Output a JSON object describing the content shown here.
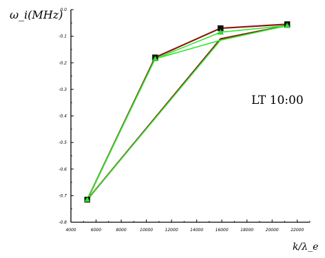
{
  "chart_data": {
    "type": "line",
    "ylabel": "ω_i(MHz)",
    "xlabel": "k/λ_e",
    "annotation": "LT 10:00",
    "xlim": [
      4000,
      23000
    ],
    "ylim": [
      -0.8,
      0.0
    ],
    "x_ticks": [
      4000,
      6000,
      8000,
      10000,
      12000,
      14000,
      16000,
      18000,
      20000,
      22000
    ],
    "x_tick_labels": [
      "4000",
      "6000",
      "8000",
      "10000",
      "12000",
      "14000",
      "16000",
      "18000",
      "20000",
      "22000"
    ],
    "y_ticks": [
      0.0,
      -0.1,
      -0.2,
      -0.3,
      -0.4,
      -0.5,
      -0.6,
      -0.7,
      -0.8
    ],
    "y_tick_labels": [
      "0.0",
      "-0.1",
      "-0.2",
      "-0.3",
      "-0.4",
      "-0.5",
      "-0.6",
      "-0.7",
      "-0.8"
    ],
    "series": [
      {
        "color": "#8b1a10",
        "marker": "square",
        "x": [
          5300,
          10700,
          15900,
          21200
        ],
        "y": [
          -0.715,
          -0.18,
          -0.07,
          -0.055
        ]
      },
      {
        "color": "#8b1a10",
        "marker": "none",
        "x": [
          5300,
          15900,
          21200
        ],
        "y": [
          -0.715,
          -0.11,
          -0.06
        ]
      },
      {
        "color": "#2ee82e",
        "marker": "triangle",
        "x": [
          5300,
          10700,
          15900,
          21200
        ],
        "y": [
          -0.715,
          -0.185,
          -0.085,
          -0.06
        ]
      },
      {
        "color": "#2ee82e",
        "marker": "none",
        "x": [
          5300,
          10700,
          15900,
          21200
        ],
        "y": [
          -0.715,
          -0.185,
          -0.115,
          -0.06
        ]
      },
      {
        "color": "#2ee82e",
        "marker": "none",
        "x": [
          5300,
          15900
        ],
        "y": [
          -0.715,
          -0.115
        ]
      }
    ]
  }
}
